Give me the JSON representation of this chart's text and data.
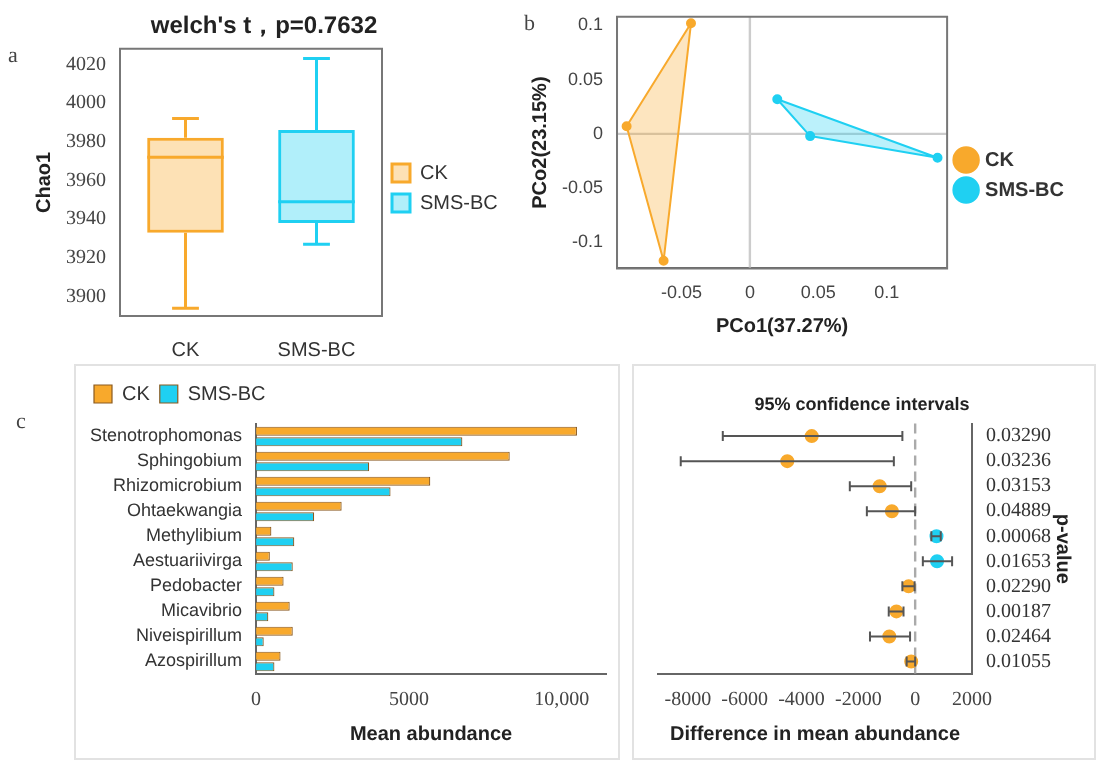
{
  "chart_data": [
    {
      "type": "box",
      "title": "welch's t，p=0.7632",
      "ylabel": "Chao1",
      "categories": [
        "CK",
        "SMS-BC"
      ],
      "series": [
        {
          "name": "CK",
          "color": "#f8a92c",
          "boxes": [
            {
              "low": 3894,
              "q1": 3933,
              "median": 3972,
              "q3": 3982,
              "high": 3992
            },
            null
          ]
        },
        {
          "name": "SMS-BC",
          "color": "#1fd0f2",
          "boxes": [
            null,
            {
              "low": 3927,
              "q1": 3938,
              "median": 3949,
              "q3": 3986,
              "high": 4023
            }
          ]
        }
      ],
      "ylim": [
        3890,
        4028
      ],
      "yticks": [
        3900,
        3920,
        3940,
        3960,
        3980,
        4000,
        4020
      ],
      "legend": "right",
      "annotations": [
        "a"
      ]
    },
    {
      "type": "scatter",
      "xlabel": "PCo1(37.27%)",
      "ylabel": "PCo2(23.15%)",
      "series": [
        {
          "name": "CK",
          "type": "area",
          "color": "#f8a92c",
          "x": [
            -0.043,
            -0.09,
            -0.063
          ],
          "values": [
            0.102,
            0.007,
            -0.117
          ]
        },
        {
          "name": "SMS-BC",
          "type": "area",
          "color": "#1fd0f2",
          "x": [
            0.02,
            0.044,
            0.137
          ],
          "values": [
            0.032,
            -0.002,
            -0.022
          ]
        }
      ],
      "xlim": [
        -0.097,
        0.144
      ],
      "xticks": [
        -0.05,
        0,
        0.05,
        0.1
      ],
      "ylim": [
        -0.124,
        0.108
      ],
      "yticks": [
        -0.1,
        -0.05,
        0,
        0.05,
        0.1
      ],
      "ref_lines": [
        {
          "axis": "x",
          "value": 0,
          "color": "#cccccc"
        },
        {
          "axis": "y",
          "value": 0,
          "color": "#cccccc"
        }
      ],
      "marker": "circle",
      "legend": "right",
      "annotations": [
        "b"
      ]
    },
    {
      "type": "bar",
      "orientation": "horizontal",
      "xlabel": "Mean abundance",
      "categories": [
        "Stenotrophomonas",
        "Sphingobium",
        "Rhizomicrobium",
        "Ohtaekwangia",
        "Methylibium",
        "Aestuariivirga",
        "Pedobacter",
        "Micavibrio",
        "Niveispirillum",
        "Azospirillum"
      ],
      "series": [
        {
          "name": "CK",
          "color": "#f8a92c",
          "values": [
            10500,
            8300,
            5700,
            2800,
            500,
            450,
            900,
            1100,
            1200,
            800
          ]
        },
        {
          "name": "SMS-BC",
          "color": "#1fd0f2",
          "values": [
            6750,
            3700,
            4400,
            1900,
            1250,
            1200,
            600,
            400,
            250,
            600
          ]
        }
      ],
      "xlim": [
        0,
        11450
      ],
      "xticks": [
        0,
        5000,
        {
          "value": 10000,
          "label": "10,000"
        }
      ],
      "legend": "top left",
      "annotations": [
        "c"
      ]
    },
    {
      "type": "scatter",
      "orientation": "horizontal",
      "title": "95% confidence intervals",
      "xlabel": "Difference in mean abundance",
      "y2label": "p-value",
      "categories": [
        null,
        null,
        null,
        null,
        null,
        null,
        null,
        null,
        null,
        null
      ],
      "y2_categories": [
        "0.03290",
        "0.03236",
        "0.03153",
        "0.04889",
        "0.00068",
        "0.01653",
        "0.02290",
        "0.00187",
        "0.02464",
        "0.01055"
      ],
      "series": [
        {
          "colors": [
            "#f8a92c",
            "#f8a92c",
            "#f8a92c",
            "#f8a92c",
            "#1fd0f2",
            "#1fd0f2",
            "#f8a92c",
            "#f8a92c",
            "#f8a92c",
            "#f8a92c"
          ],
          "values": [
            -3640,
            -4500,
            -1250,
            -820,
            750,
            770,
            -230,
            -660,
            -910,
            -140
          ],
          "errors": [
            [
              -6770,
              -450
            ],
            [
              -8250,
              -750
            ],
            [
              -2300,
              -140
            ],
            [
              -1700,
              0
            ],
            [
              570,
              900
            ],
            [
              270,
              1300
            ],
            [
              -450,
              -20
            ],
            [
              -930,
              -410
            ],
            [
              -1590,
              -180
            ],
            [
              -300,
              0
            ]
          ]
        }
      ],
      "xlim": [
        -9050,
        2000
      ],
      "xticks": [
        -8000,
        -6000,
        -4000,
        -2000,
        0,
        2000
      ],
      "ref_lines": [
        {
          "axis": "x",
          "value": 0,
          "color": "#aaaaaa",
          "line_style": "dashed"
        }
      ],
      "marker": "circle",
      "tick_labels": "x"
    }
  ]
}
